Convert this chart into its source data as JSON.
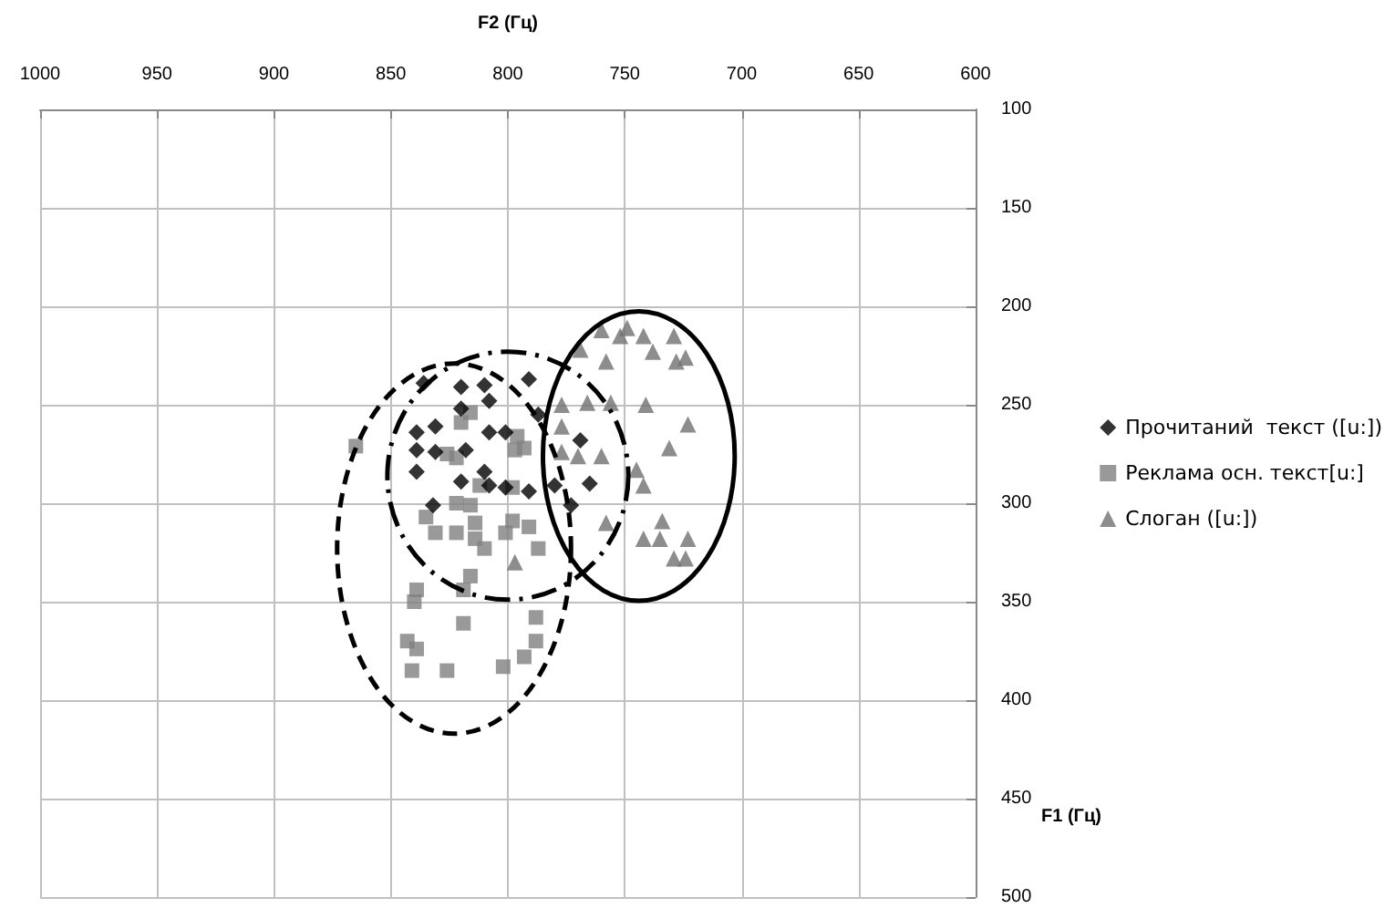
{
  "chart_data": {
    "type": "scatter",
    "xlabel": "F2 (Гц)",
    "ylabel": "F1 (Гц)",
    "xlim": [
      1000,
      600
    ],
    "xticks": [
      1000,
      950,
      900,
      850,
      800,
      750,
      700,
      650,
      600
    ],
    "ylim": [
      500,
      100
    ],
    "yticks": [
      100,
      150,
      200,
      250,
      300,
      350,
      400,
      450,
      500
    ],
    "grid": true,
    "legend": "right",
    "series": [
      {
        "name": "Прочитаний  текст ([u:])",
        "color": "#000000",
        "marker": "diamond",
        "x": [
          836,
          820,
          810,
          808,
          791,
          820,
          839,
          831,
          808,
          787,
          839,
          831,
          818,
          801,
          839,
          820,
          810,
          801,
          832,
          808,
          791,
          769,
          780,
          765,
          773
        ],
        "values": [
          239,
          241,
          240,
          248,
          237,
          252,
          264,
          261,
          264,
          255,
          273,
          274,
          273,
          264,
          284,
          289,
          284,
          292,
          301,
          291,
          294,
          268,
          291,
          290,
          301
        ]
      },
      {
        "name": "Реклама осн. текст[u:]",
        "color": "#808080",
        "marker": "square",
        "x": [
          865,
          816,
          820,
          796,
          826,
          822,
          797,
          793,
          812,
          798,
          822,
          835,
          816,
          798,
          791,
          814,
          831,
          822,
          814,
          810,
          801,
          787,
          816,
          839,
          840,
          819,
          819,
          788,
          843,
          839,
          788,
          793,
          841,
          826,
          802
        ],
        "values": [
          271,
          254,
          259,
          266,
          275,
          277,
          273,
          272,
          291,
          292,
          300,
          307,
          301,
          309,
          312,
          310,
          315,
          315,
          318,
          323,
          315,
          323,
          337,
          344,
          350,
          344,
          361,
          358,
          370,
          374,
          370,
          378,
          385,
          385,
          383
        ]
      },
      {
        "name": "Слоган ([u:])",
        "color": "#707070",
        "marker": "triangle",
        "x": [
          760,
          752,
          749,
          742,
          729,
          738,
          769,
          758,
          728,
          724,
          777,
          766,
          756,
          741,
          723,
          777,
          777,
          770,
          760,
          731,
          745,
          742,
          758,
          734,
          742,
          735,
          723,
          729,
          724,
          797
        ],
        "values": [
          212,
          215,
          211,
          215,
          215,
          223,
          222,
          228,
          228,
          226,
          250,
          249,
          249,
          250,
          260,
          261,
          274,
          276,
          276,
          272,
          283,
          291,
          310,
          309,
          318,
          318,
          318,
          328,
          328,
          330
        ]
      }
    ]
  }
}
